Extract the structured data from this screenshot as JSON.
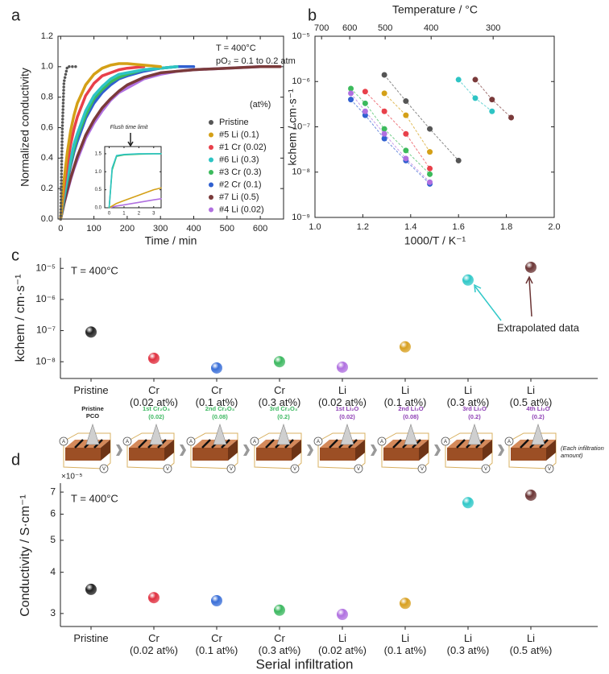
{
  "chart_data": [
    {
      "type": "line",
      "panel_label": "a",
      "xlabel": "Time / min",
      "ylabel": "Normalized conductivity",
      "annotations": [
        "T = 400°C",
        "pO₂ = 0.1 to 0.2 atm"
      ],
      "legend_title": "(at%)",
      "legend": "right",
      "box": true,
      "xlim": [
        -8,
        670
      ],
      "xticks": [
        0,
        100,
        200,
        300,
        400,
        500,
        600
      ],
      "ylim": [
        0,
        1.2
      ],
      "yticks": [
        {
          "value": 0,
          "label": "0.0"
        },
        0.2,
        0.4,
        0.6,
        0.8,
        {
          "value": 1,
          "label": "1.0"
        },
        1.2
      ],
      "x": [
        0,
        5,
        10,
        20,
        30,
        40,
        50,
        75,
        100,
        125,
        150,
        175,
        200,
        250,
        300,
        350,
        400,
        500,
        600,
        660
      ],
      "series": [
        {
          "name": "#4 Li (0.02)",
          "color": "#b070e0",
          "values": [
            0,
            0.05,
            0.1,
            0.18,
            0.26,
            0.33,
            0.39,
            0.53,
            0.63,
            0.71,
            0.78,
            0.83,
            0.86,
            0.92,
            0.95,
            0.97,
            0.98,
            0.99,
            1,
            1
          ]
        },
        {
          "name": "#7 Li (0.5)",
          "color": "#7a3a3a",
          "values": [
            0,
            0.05,
            0.1,
            0.19,
            0.27,
            0.34,
            0.41,
            0.55,
            0.65,
            0.73,
            0.79,
            0.84,
            0.88,
            0.93,
            0.96,
            0.97,
            0.98,
            0.99,
            1,
            1
          ]
        },
        {
          "name": "#2 Cr (0.1)",
          "color": "#3060d0",
          "values": [
            0,
            0.07,
            0.13,
            0.25,
            0.35,
            0.44,
            0.51,
            0.66,
            0.76,
            0.83,
            0.88,
            0.92,
            0.94,
            0.97,
            0.99,
            1,
            1,
            null,
            null,
            null
          ]
        },
        {
          "name": "#3 Cr (0.3)",
          "color": "#3cba5c",
          "values": [
            0,
            0.07,
            0.14,
            0.26,
            0.37,
            0.46,
            0.54,
            0.68,
            0.79,
            0.85,
            0.9,
            0.93,
            0.95,
            0.98,
            0.99,
            1,
            null,
            null,
            null,
            null
          ]
        },
        {
          "name": "#6 Li (0.3)",
          "color": "#2ec4c4",
          "values": [
            0,
            0.08,
            0.15,
            0.28,
            0.39,
            0.49,
            0.56,
            0.71,
            0.81,
            0.87,
            0.92,
            0.95,
            0.96,
            0.98,
            0.99,
            1,
            null,
            null,
            null,
            null
          ]
        },
        {
          "name": "#1 Cr (0.02)",
          "color": "#e8404a",
          "values": [
            0,
            0.105,
            0.2,
            0.36,
            0.49,
            0.59,
            0.67,
            0.81,
            0.89,
            0.94,
            0.96,
            0.98,
            0.99,
            1,
            null,
            null,
            null,
            null,
            null,
            null
          ]
        },
        {
          "name": "#5 Li (0.1)",
          "color": "#d4a017",
          "values": [
            0,
            0.13,
            0.25,
            0.44,
            0.58,
            0.68,
            0.76,
            0.88,
            0.95,
            0.99,
            1.01,
            1.02,
            1.02,
            1.01,
            1,
            null,
            null,
            null,
            null,
            null
          ]
        },
        {
          "name": "Pristine",
          "color": "#555555",
          "style": "dotted",
          "values": [
            0,
            0.6,
            0.9,
            1,
            1,
            1,
            1,
            null,
            null,
            null,
            null,
            null,
            null,
            null,
            null,
            null,
            null,
            null,
            null,
            null
          ]
        }
      ]
    },
    {
      "type": "line",
      "box": true,
      "annotations": [
        "Flush time limit"
      ],
      "xlim": [
        -0.3,
        3.5
      ],
      "xticks": [
        0,
        1,
        2,
        3
      ],
      "ylim": [
        0,
        1.7
      ],
      "yticks": [
        {
          "value": 0,
          "label": "0.0"
        },
        0.5,
        {
          "value": 1,
          "label": "1.0"
        },
        1.5
      ],
      "x": [
        0,
        0.2,
        0.5,
        1,
        2,
        3,
        3.5
      ],
      "series": [
        {
          "color": "#b070e0",
          "values": [
            0,
            0.02,
            0.05,
            0.08,
            0.15,
            0.22,
            0.25
          ]
        },
        {
          "color": "#d4a017",
          "values": [
            0,
            0.05,
            0.12,
            0.2,
            0.35,
            0.5,
            0.55
          ]
        },
        {
          "color": "#3cba5c",
          "values": [
            0,
            1.05,
            1.43,
            1.47,
            1.49,
            1.5,
            1.5
          ]
        },
        {
          "color": "#2ec4c4",
          "values": [
            0,
            1.1,
            1.45,
            1.48,
            1.5,
            1.5,
            1.5
          ]
        }
      ]
    },
    {
      "type": "scatter",
      "panel_label": "b",
      "box": true,
      "xlabel": "1000/T / K⁻¹",
      "ylabel": "kchem / cm·s⁻¹",
      "x2label": "Temperature / °C",
      "x2ticks": [
        700,
        600,
        500,
        400,
        300
      ],
      "xlim": [
        1,
        2
      ],
      "xticks": [
        {
          "value": 1,
          "label": "1.0"
        },
        1.2,
        1.4,
        1.6,
        1.8,
        {
          "value": 2,
          "label": "2.0"
        }
      ],
      "ylog": true,
      "ylim": [
        1e-09,
        1e-05
      ],
      "yticks": [
        {
          "value": 1e-09,
          "label": "10⁻⁹"
        },
        {
          "value": 1e-08,
          "label": "10⁻⁸"
        },
        {
          "value": 1e-07,
          "label": "10⁻⁷"
        },
        {
          "value": 1e-06,
          "label": "10⁻⁶"
        },
        {
          "value": 1e-05,
          "label": "10⁻⁵"
        }
      ],
      "series": [
        {
          "color": "#555555",
          "x": [
            1.29,
            1.38,
            1.48,
            1.6
          ],
          "values": [
            1.4e-06,
            3.7e-07,
            9e-08,
            1.8e-08
          ]
        },
        {
          "color": "#e8404a",
          "x": [
            1.21,
            1.29,
            1.38,
            1.48
          ],
          "values": [
            6e-07,
            2.2e-07,
            7e-08,
            1.2e-08
          ]
        },
        {
          "color": "#3060d0",
          "x": [
            1.15,
            1.21,
            1.29,
            1.38,
            1.48
          ],
          "values": [
            4e-07,
            1.8e-07,
            5.5e-08,
            1.8e-08,
            5.5e-09
          ]
        },
        {
          "color": "#3cba5c",
          "x": [
            1.15,
            1.21,
            1.29,
            1.38,
            1.48
          ],
          "values": [
            7e-07,
            3.3e-07,
            9e-08,
            3e-08,
            9e-09
          ]
        },
        {
          "color": "#b070e0",
          "x": [
            1.15,
            1.21,
            1.29,
            1.38,
            1.48
          ],
          "values": [
            5.5e-07,
            2.2e-07,
            7e-08,
            2e-08,
            6e-09
          ]
        },
        {
          "color": "#d4a017",
          "x": [
            1.29,
            1.38,
            1.48
          ],
          "values": [
            5.5e-07,
            1.8e-07,
            2.8e-08
          ]
        },
        {
          "color": "#2ec4c4",
          "x": [
            1.6,
            1.67,
            1.74
          ],
          "values": [
            1.1e-06,
            4.3e-07,
            2.2e-07
          ]
        },
        {
          "color": "#7a3a3a",
          "x": [
            1.67,
            1.74,
            1.82
          ],
          "values": [
            1.1e-06,
            4e-07,
            1.6e-07
          ]
        }
      ]
    },
    {
      "type": "scatter",
      "panel_label": "c",
      "ylabel": "kchem / cm·s⁻¹",
      "annotations": [
        "T = 400°C",
        "Extrapolated data"
      ],
      "ylog": true,
      "ylim": [
        2.9e-09,
        2.2e-05
      ],
      "yticks": [
        {
          "value": 1e-08,
          "label": "10⁻⁸"
        },
        {
          "value": 1e-07,
          "label": "10⁻⁷"
        },
        {
          "value": 1e-06,
          "label": "10⁻⁶"
        },
        {
          "value": 1e-05,
          "label": "10⁻⁵"
        }
      ],
      "categories": [
        "Pristine",
        "Cr\n(0.02 at%)",
        "Cr\n(0.1 at%)",
        "Cr\n(0.3 at%)",
        "Li\n(0.02 at%)",
        "Li\n(0.1 at%)",
        "Li\n(0.3 at%)",
        "Li\n(0.5 at%)"
      ],
      "values": [
        9e-08,
        1.29e-08,
        6.3e-09,
        1e-08,
        6.7e-09,
        3e-08,
        4.2e-06,
        1.08e-05
      ],
      "colors": [
        "#222222",
        "#e03040",
        "#3a6fd8",
        "#3cb860",
        "#b070e0",
        "#d8a020",
        "#30c8c8",
        "#6b3535"
      ]
    },
    {
      "type": "scatter",
      "panel_label": "d",
      "ylabel": "Conductivity / S·cm⁻¹",
      "xlabel": "Serial infiltration",
      "annotations": [
        "T = 400°C"
      ],
      "y_multiplier": "×10⁻⁵",
      "ylog": true,
      "ylim": [
        2.74e-05,
        7.45e-05
      ],
      "yticks": [
        {
          "value": 3e-05,
          "label": "3"
        },
        {
          "value": 4e-05,
          "label": "4"
        },
        {
          "value": 5e-05,
          "label": "5"
        },
        {
          "value": 6e-05,
          "label": "6"
        },
        {
          "value": 7e-05,
          "label": "7"
        }
      ],
      "categories": [
        "Pristine",
        "Cr\n(0.02 at%)",
        "Cr\n(0.1 at%)",
        "Cr\n(0.3 at%)",
        "Li\n(0.02 at%)",
        "Li\n(0.1 at%)",
        "Li\n(0.3 at%)",
        "Li\n(0.5 at%)"
      ],
      "values": [
        3.55e-05,
        3.35e-05,
        3.28e-05,
        3.07e-05,
        2.98e-05,
        3.22e-05,
        6.5e-05,
        6.85e-05
      ],
      "colors": [
        "#222222",
        "#e03040",
        "#3a6fd8",
        "#3cb860",
        "#b070e0",
        "#d8a020",
        "#30c8c8",
        "#6b3535"
      ]
    }
  ],
  "schematic": {
    "steps": [
      {
        "label": "Pristine\nPCO",
        "color": "#222222"
      },
      {
        "label": "1st Cr₂O₃",
        "amount": "(0.02)",
        "color": "#3cb860"
      },
      {
        "label": "2nd Cr₂O₃",
        "amount": "(0.08)",
        "color": "#3cb860"
      },
      {
        "label": "3rd Cr₂O₃",
        "amount": "(0.2)",
        "color": "#3cb860"
      },
      {
        "label": "1st Li₂O",
        "amount": "(0.02)",
        "color": "#8e3fb5"
      },
      {
        "label": "2nd Li₂O",
        "amount": "(0.08)",
        "color": "#8e3fb5"
      },
      {
        "label": "3rd Li₂O",
        "amount": "(0.2)",
        "color": "#8e3fb5"
      },
      {
        "label": "4th Li₂O",
        "amount": "(0.2)",
        "color": "#8e3fb5"
      }
    ],
    "meters": [
      "A",
      "V"
    ],
    "note": "(Each infiltration\namount)"
  }
}
